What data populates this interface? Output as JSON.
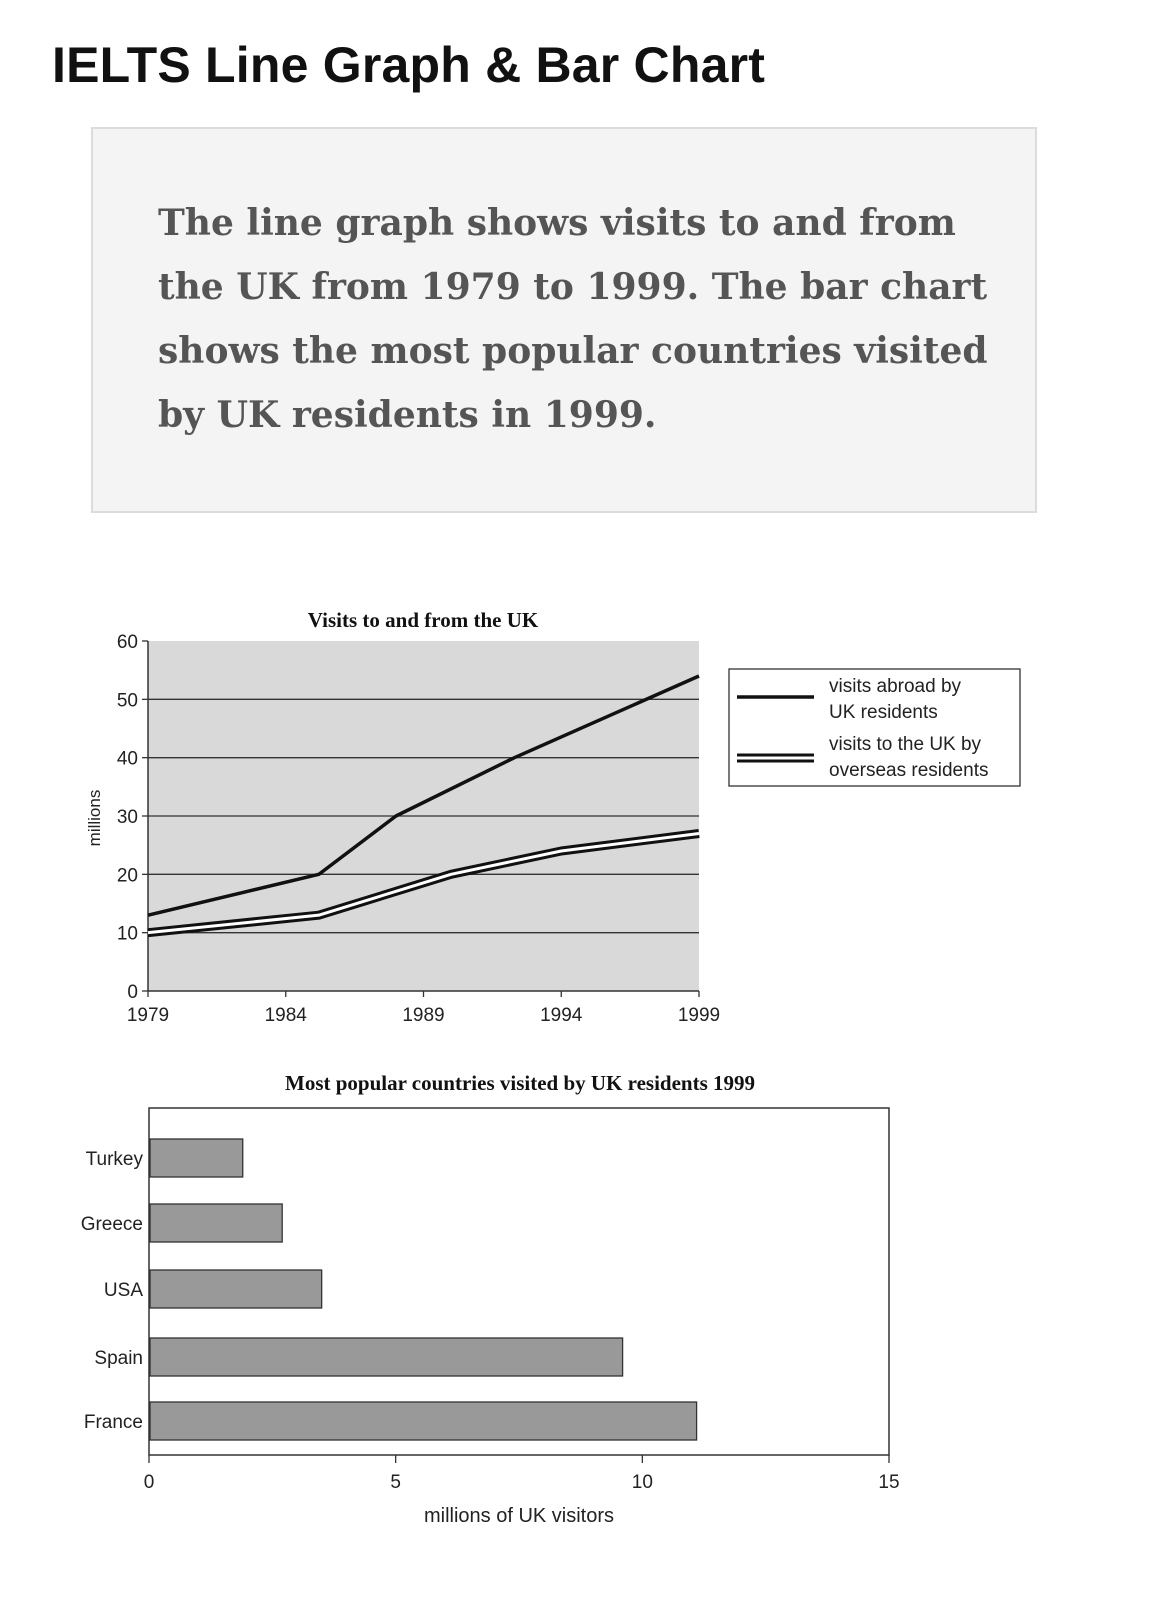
{
  "page": {
    "title": "IELTS Line Graph & Bar Chart",
    "description": "The line graph shows visits to and from the UK from 1979 to 1999. The bar chart shows the most popular countries visited by UK residents in 1999."
  },
  "colors": {
    "plot_background": "#d9d9d9",
    "bar_fill": "#999999",
    "line_dark": "#111111"
  },
  "chart_data": [
    {
      "type": "line",
      "title": "Visits to and from the UK",
      "xlabel": "",
      "ylabel": "millions",
      "xlim": [
        1979,
        1999
      ],
      "ylim": [
        0,
        60
      ],
      "x_ticks": [
        "1979",
        "1984",
        "1989",
        "1994",
        "1999"
      ],
      "y_ticks": [
        "0",
        "10",
        "20",
        "30",
        "40",
        "50",
        "60"
      ],
      "grid": true,
      "legend_position": "right",
      "series": [
        {
          "name": "visits abroad by UK residents",
          "style": "solid thick",
          "x": [
            1979,
            1985.2,
            1988,
            1992.3,
            1999
          ],
          "y": [
            13,
            20,
            30,
            40,
            54
          ]
        },
        {
          "name": "visits to the UK by overseas residents",
          "style": "double line",
          "x": [
            1979,
            1985.2,
            1990,
            1994,
            1999
          ],
          "y": [
            10,
            13,
            20,
            24,
            27
          ]
        }
      ]
    },
    {
      "type": "bar",
      "orientation": "horizontal",
      "title": "Most popular countries visited by UK residents 1999",
      "xlabel": "millions of UK visitors",
      "ylabel": "",
      "xlim": [
        0,
        15
      ],
      "x_ticks": [
        "0",
        "5",
        "10",
        "15"
      ],
      "grid": false,
      "categories": [
        "Turkey",
        "Greece",
        "USA",
        "Spain",
        "France"
      ],
      "values": [
        1.9,
        2.7,
        3.5,
        9.6,
        11.1
      ]
    }
  ]
}
